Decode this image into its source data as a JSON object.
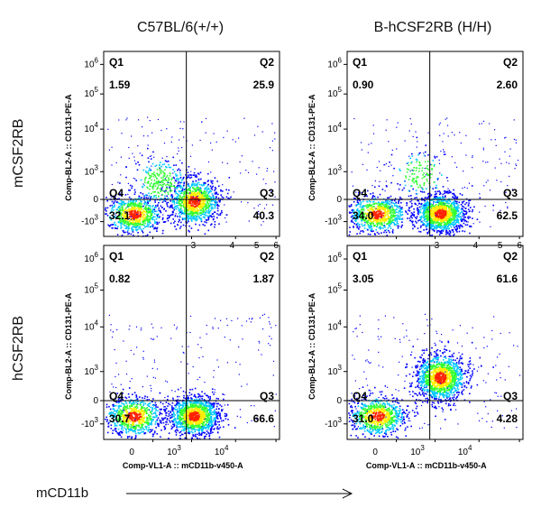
{
  "column_titles": [
    "C57BL/6(+/+)",
    "B-hCSF2RB (H/H)"
  ],
  "row_titles": [
    "mCSF2RB",
    "hCSF2RB"
  ],
  "x_axis_label": "Comp-VL1-A :: mCD11b-v450-A",
  "y_axis_label": "Comp-BL2-A :: CD131-PE-A",
  "bottom_label": "mCD11b",
  "colors": {
    "low": "#0000ff",
    "mid": "#00c8ff",
    "mid2": "#33ff33",
    "high": "#ffee00",
    "peak": "#ff2200"
  },
  "chart_data": [
    {
      "type": "scatter",
      "row": "mCSF2RB",
      "column": "C57BL/6(+/+)",
      "xlabel": "",
      "ylabel": "Comp-BL2-A :: CD131-PE-A",
      "y_ticks": [
        "10^6",
        "10^5",
        "10^4",
        "10^3",
        "0",
        "-10^3"
      ],
      "x_ticks": [],
      "quadrants": [
        {
          "name": "Q1",
          "value": "1.59"
        },
        {
          "name": "Q2",
          "value": "25.9"
        },
        {
          "name": "Q3",
          "value": "40.3"
        },
        {
          "name": "Q4",
          "value": "32.1"
        }
      ],
      "populations": [
        {
          "x": 0.0,
          "y": -100,
          "weight": 3
        },
        {
          "x": 4.2,
          "y": 800,
          "weight": 4
        },
        {
          "x": 3.0,
          "y": 3000,
          "weight": 1
        }
      ]
    },
    {
      "type": "scatter",
      "row": "mCSF2RB",
      "column": "B-hCSF2RB (H/H)",
      "xlabel": "",
      "ylabel": "Comp-BL2-A :: CD131-PE-A",
      "y_ticks": [
        "10^6",
        "10^5",
        "10^4",
        "10^3",
        "0",
        "-10^3"
      ],
      "x_ticks": [],
      "quadrants": [
        {
          "name": "Q1",
          "value": "0.90"
        },
        {
          "name": "Q2",
          "value": "2.60"
        },
        {
          "name": "Q3",
          "value": "62.5"
        },
        {
          "name": "Q4",
          "value": "34.0"
        }
      ],
      "populations": [
        {
          "x": 0.0,
          "y": -100,
          "weight": 3
        },
        {
          "x": 4.3,
          "y": -50,
          "weight": 5
        },
        {
          "x": 3.6,
          "y": 5000,
          "weight": 0.5
        }
      ]
    },
    {
      "type": "scatter",
      "row": "hCSF2RB",
      "column": "C57BL/6(+/+)",
      "xlabel": "Comp-VL1-A :: mCD11b-v450-A",
      "ylabel": "Comp-BL2-A :: CD131-PE-A",
      "y_ticks": [
        "10^6",
        "10^5",
        "10^4",
        "10^3",
        "0",
        "-10^3"
      ],
      "x_ticks": [
        "0",
        "10^3",
        "10^4"
      ],
      "quadrants": [
        {
          "name": "Q1",
          "value": "0.82"
        },
        {
          "name": "Q2",
          "value": "1.87"
        },
        {
          "name": "Q3",
          "value": "66.6"
        },
        {
          "name": "Q4",
          "value": "30.7"
        }
      ],
      "populations": [
        {
          "x": 0.0,
          "y": -100,
          "weight": 3
        },
        {
          "x": 4.2,
          "y": -80,
          "weight": 5
        }
      ]
    },
    {
      "type": "scatter",
      "row": "hCSF2RB",
      "column": "B-hCSF2RB (H/H)",
      "xlabel": "Comp-VL1-A :: mCD11b-v450-A",
      "ylabel": "Comp-BL2-A :: CD131-PE-A",
      "y_ticks": [
        "10^6",
        "10^5",
        "10^4",
        "10^3",
        "0",
        "-10^3"
      ],
      "x_ticks": [
        "0",
        "10^3",
        "10^4"
      ],
      "quadrants": [
        {
          "name": "Q1",
          "value": "3.05"
        },
        {
          "name": "Q2",
          "value": "61.6"
        },
        {
          "name": "Q3",
          "value": "4.28"
        },
        {
          "name": "Q4",
          "value": "31.0"
        }
      ],
      "populations": [
        {
          "x": 0.0,
          "y": -100,
          "weight": 3
        },
        {
          "x": 4.3,
          "y": 4000,
          "weight": 5
        }
      ]
    }
  ]
}
